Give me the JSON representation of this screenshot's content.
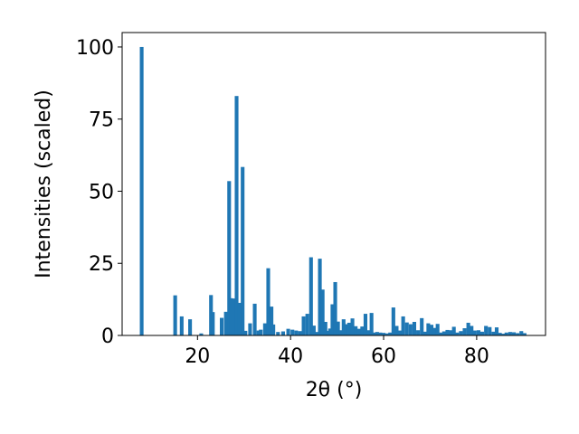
{
  "chart_data": {
    "type": "bar",
    "xlabel": "2θ (°)",
    "ylabel": "Intensities (scaled)",
    "xlim": [
      3.8,
      94.8
    ],
    "ylim": [
      0,
      105
    ],
    "xticks": [
      20,
      40,
      60,
      80
    ],
    "yticks": [
      0,
      25,
      50,
      75,
      100
    ],
    "bar_color": "#1f77b4",
    "bar_width": 0.8,
    "grid": false,
    "legend": "none",
    "x": [
      8.0,
      15.2,
      16.6,
      18.4,
      20.8,
      22.9,
      23.3,
      25.2,
      26.1,
      26.8,
      27.2,
      27.8,
      28.4,
      29.0,
      29.7,
      30.3,
      31.3,
      32.3,
      33.1,
      33.6,
      34.5,
      35.2,
      35.9,
      36.3,
      37.3,
      38.4,
      39.5,
      40.4,
      41.2,
      42.0,
      42.8,
      43.6,
      44.4,
      45.0,
      45.7,
      46.3,
      46.9,
      47.5,
      48.0,
      48.5,
      49.0,
      49.6,
      50.2,
      50.8,
      51.4,
      52.0,
      52.6,
      53.3,
      54.0,
      54.7,
      55.4,
      56.1,
      56.8,
      57.4,
      58.0,
      58.6,
      59.3,
      60.0,
      60.7,
      61.4,
      62.1,
      62.8,
      63.5,
      64.2,
      65.0,
      65.8,
      66.6,
      67.4,
      68.2,
      68.9,
      69.6,
      70.3,
      71.0,
      71.6,
      72.3,
      73.0,
      73.7,
      74.4,
      75.1,
      75.8,
      76.6,
      77.4,
      78.2,
      78.9,
      79.6,
      80.4,
      81.2,
      82.0,
      82.8,
      83.6,
      84.3,
      85.0,
      85.7,
      86.4,
      87.2,
      88.0,
      88.8,
      89.6,
      90.3
    ],
    "y": [
      100.0,
      13.9,
      6.6,
      5.6,
      0.7,
      14.0,
      8.1,
      6.1,
      8.2,
      53.5,
      12.9,
      12.8,
      83.0,
      11.3,
      58.4,
      1.6,
      4.2,
      11.0,
      1.7,
      2.0,
      4.2,
      23.3,
      10.0,
      3.8,
      1.2,
      1.4,
      2.3,
      2.0,
      1.7,
      1.5,
      6.6,
      7.5,
      27.1,
      3.4,
      1.2,
      26.6,
      15.9,
      4.7,
      1.6,
      2.4,
      10.8,
      18.5,
      4.8,
      1.8,
      5.6,
      3.9,
      4.4,
      5.9,
      3.2,
      2.3,
      3.1,
      7.5,
      1.8,
      7.8,
      1.0,
      1.2,
      1.0,
      0.9,
      0.7,
      1.0,
      9.7,
      3.3,
      1.7,
      6.6,
      4.5,
      3.9,
      4.7,
      1.8,
      6.0,
      1.3,
      4.2,
      3.7,
      2.6,
      4.0,
      1.0,
      1.4,
      1.9,
      1.8,
      3.0,
      1.0,
      1.5,
      2.5,
      4.4,
      3.3,
      1.7,
      1.8,
      1.3,
      3.3,
      2.9,
      1.3,
      2.8,
      0.9,
      0.6,
      1.0,
      1.2,
      1.1,
      0.8,
      1.5,
      0.8
    ]
  }
}
